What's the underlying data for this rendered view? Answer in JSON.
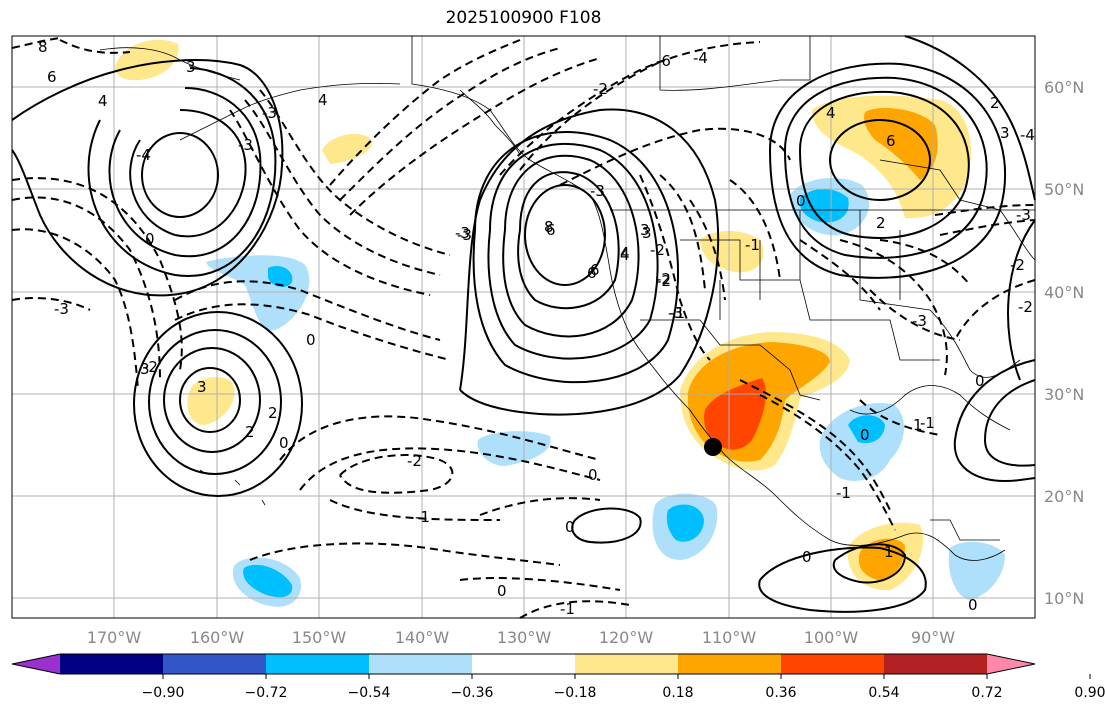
{
  "title": "2025100900 F108",
  "map": {
    "lon_labels": [
      "170°W",
      "160°W",
      "150°W",
      "140°W",
      "130°W",
      "120°W",
      "110°W",
      "100°W",
      "90°W"
    ],
    "lat_labels": [
      "60°N",
      "50°N",
      "40°N",
      "30°N",
      "20°N",
      "10°N"
    ],
    "marker": {
      "label": "black dot (point of interest)",
      "lon": -111.2,
      "lat": 25.2
    }
  },
  "contour_labels": [
    "8",
    "6",
    "4",
    "-3",
    "-2",
    "-4",
    "-3",
    "-3",
    "4",
    "3",
    "-2",
    "6",
    "-2",
    "-3",
    "3",
    "4",
    "6",
    "-3",
    "-6",
    "-4",
    "-3",
    "-3",
    "2",
    "6",
    "4",
    "0",
    "-1",
    "-3",
    "-2",
    "-2",
    "0",
    "3",
    "2",
    "2",
    "-2",
    "0",
    "-1",
    "0",
    "-2",
    "8",
    "6",
    "4",
    "3",
    "-3",
    "-1",
    "-2",
    "3",
    "-4",
    "-1",
    "0",
    "2",
    "0",
    "0",
    "0",
    "-1",
    "0",
    "1",
    "0",
    "-1",
    "1",
    "3",
    "0"
  ],
  "colorbar": {
    "ticks": [
      "−0.90",
      "−0.72",
      "−0.54",
      "−0.36",
      "−0.18",
      "0.18",
      "0.36",
      "0.54",
      "0.72",
      "0.90"
    ],
    "colors": [
      "#9b30d0",
      "#000080",
      "#3256c8",
      "#00bfff",
      "#afe0fb",
      "#ffffff",
      "#ffe88c",
      "#ffa500",
      "#ff4500",
      "#b22222",
      "#ff88aa"
    ]
  }
}
